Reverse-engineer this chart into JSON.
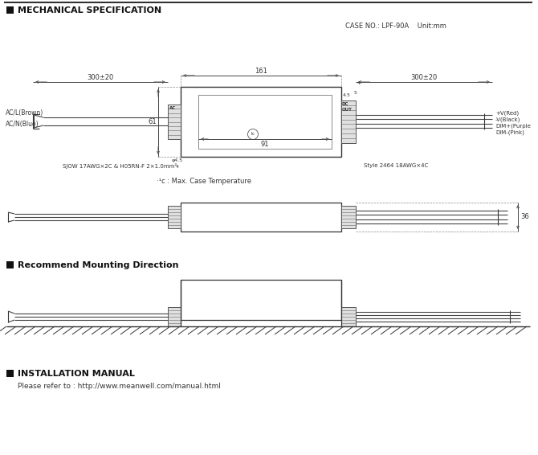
{
  "title_section1": "MECHANICAL SPECIFICATION",
  "title_section2": "Recommend Mounting Direction",
  "title_section3": "INSTALLATION MANUAL",
  "case_no": "CASE NO.: LPF-90A    Unit:mm",
  "installation_text": "Please refer to : http://www.meanwell.com/manual.html",
  "temp_note": "·¹c : Max. Case Temperature",
  "dim_161": "161",
  "dim_300_20_left": "300±20",
  "dim_300_20_right": "300±20",
  "dim_61": "61",
  "dim_91": "91",
  "dim_36": "36",
  "label_ac_l": "AC/L(Brown)",
  "label_ac_n": "AC/N(Blue)",
  "label_sjow": "SJOW 17AWG×2C & H05RN-F 2×1.0mm²",
  "label_style": "Style 2464 18AWG×4C",
  "label_vred": "+V(Red)",
  "label_vblack": "-V(Black)",
  "label_dim_plus": "DIM+(Purple",
  "label_dim_minus": "DIM-(Pink)",
  "bg_color": "#ffffff",
  "line_color": "#555555",
  "text_color": "#333333"
}
